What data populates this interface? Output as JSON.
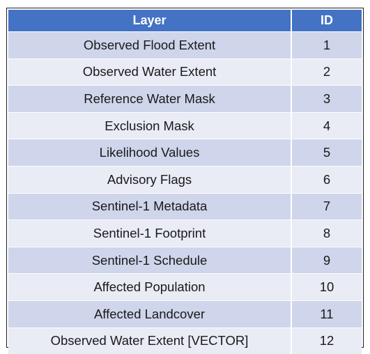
{
  "table": {
    "headers": [
      "Layer",
      "ID"
    ],
    "rows": [
      [
        "Observed Flood Extent",
        "1"
      ],
      [
        "Observed Water Extent",
        "2"
      ],
      [
        "Reference Water Mask",
        "3"
      ],
      [
        "Exclusion Mask",
        "4"
      ],
      [
        "Likelihood Values",
        "5"
      ],
      [
        "Advisory Flags",
        "6"
      ],
      [
        "Sentinel-1 Metadata",
        "7"
      ],
      [
        "Sentinel-1 Footprint",
        "8"
      ],
      [
        "Sentinel-1 Schedule",
        "9"
      ],
      [
        "Affected Population",
        "10"
      ],
      [
        "Affected Landcover",
        "11"
      ],
      [
        "Observed Water Extent [VECTOR]",
        "12"
      ]
    ]
  },
  "colors": {
    "header_bg": "#4472c4",
    "header_text": "#ffffff",
    "row_odd_bg": "#cfd5ea",
    "row_even_bg": "#e9ebf5",
    "border": "#1f1f1f"
  }
}
